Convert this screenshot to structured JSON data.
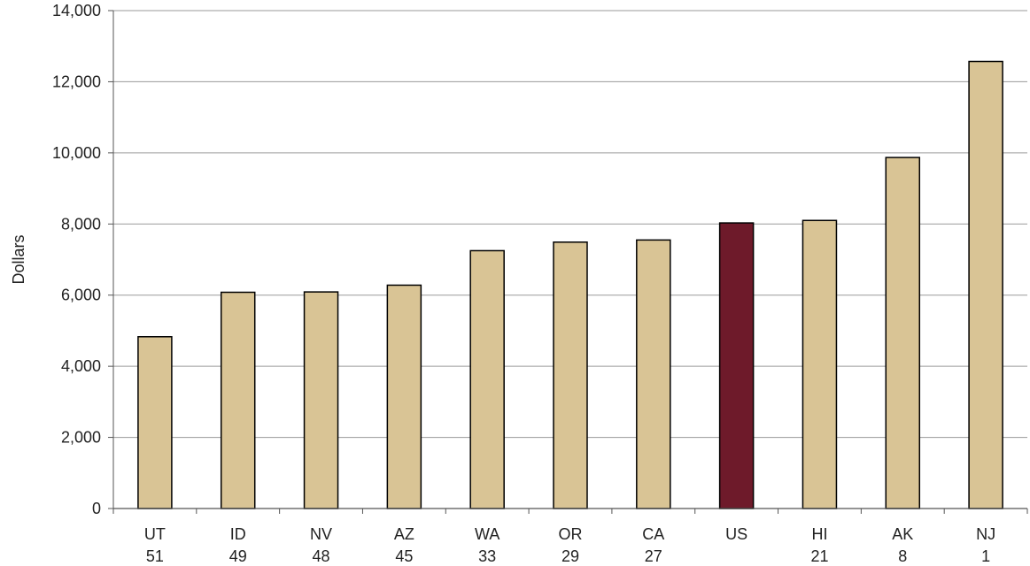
{
  "chart_data": {
    "type": "bar",
    "ylabel": "Dollars",
    "xlabel": "",
    "ylim": [
      0,
      14000
    ],
    "yticks": [
      0,
      2000,
      4000,
      6000,
      8000,
      10000,
      12000,
      14000
    ],
    "ytick_labels": [
      "0",
      "2,000",
      "4,000",
      "6,000",
      "8,000",
      "10,000",
      "12,000",
      "14,000"
    ],
    "grid": true,
    "categories": [
      {
        "label": "UT",
        "rank": "51"
      },
      {
        "label": "ID",
        "rank": "49"
      },
      {
        "label": "NV",
        "rank": "48"
      },
      {
        "label": "AZ",
        "rank": "45"
      },
      {
        "label": "WA",
        "rank": "33"
      },
      {
        "label": "OR",
        "rank": "29"
      },
      {
        "label": "CA",
        "rank": "27"
      },
      {
        "label": "US",
        "rank": ""
      },
      {
        "label": "HI",
        "rank": "21"
      },
      {
        "label": "AK",
        "rank": "8"
      },
      {
        "label": "NJ",
        "rank": "1"
      }
    ],
    "values": [
      4830,
      6080,
      6090,
      6280,
      7250,
      7490,
      7550,
      8030,
      8100,
      9870,
      12570
    ],
    "colors": {
      "default_bar": "#d9c495",
      "highlight_bar": "#6e1a2a",
      "bar_outline": "#000000",
      "grid": "#9a9a9a",
      "axis": "#555555"
    },
    "highlight": "US"
  }
}
